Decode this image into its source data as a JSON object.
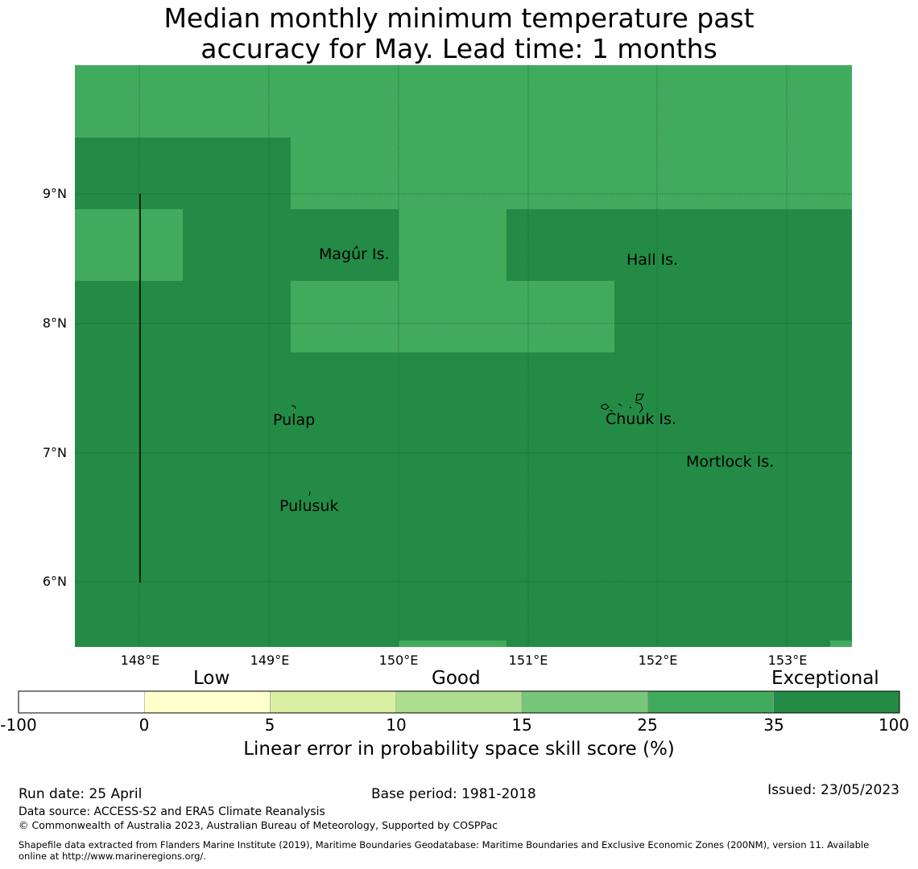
{
  "title_line1": "Median monthly minimum temperature past",
  "title_line2": "accuracy for May. Lead time: 1 months",
  "map": {
    "lon_labels": [
      "148°E",
      "149°E",
      "150°E",
      "151°E",
      "152°E",
      "153°E"
    ],
    "lat_labels": [
      "9°N",
      "8°N",
      "7°N",
      "6°N"
    ],
    "places": {
      "magur": "Magur Is.",
      "hall": "Hall Is.",
      "pulap": "Pulap",
      "chuuk": "Chuuk Is.",
      "mortlock": "Mortlock Is.",
      "pulusuk": "Pulusuk"
    },
    "colors": {
      "exceptional": "#238b45",
      "good_high": "#41ab5d"
    }
  },
  "colorbar": {
    "categories": {
      "low": "Low",
      "good": "Good",
      "exceptional": "Exceptional"
    },
    "ticks": [
      "-100",
      "0",
      "5",
      "10",
      "15",
      "25",
      "35",
      "100"
    ],
    "colors": [
      "#ffffff",
      "#ffffcc",
      "#d9f0a3",
      "#addd8e",
      "#78c679",
      "#41ab5d",
      "#238b45"
    ],
    "title": "Linear error in probability space skill score (%)"
  },
  "footer": {
    "run_date": "Run date: 25 April",
    "base_period": "Base period: 1981-2018",
    "issued": "Issued: 23/05/2023",
    "data_source": "Data source: ACCESS-S2 and ERA5 Climate Reanalysis",
    "copyright": "© Commonwealth of Australia 2023, Australian Bureau of Meteorology, Supported by COSPPac",
    "shapefile_line1": "Shapefile data extracted from Flanders Marine Institute (2019), Maritime Boundaries Geodatabase: Maritime Boundaries and Exclusive Economic Zones (200NM), version 11. Available",
    "shapefile_line2": "online at http://www.marineregions.org/."
  }
}
